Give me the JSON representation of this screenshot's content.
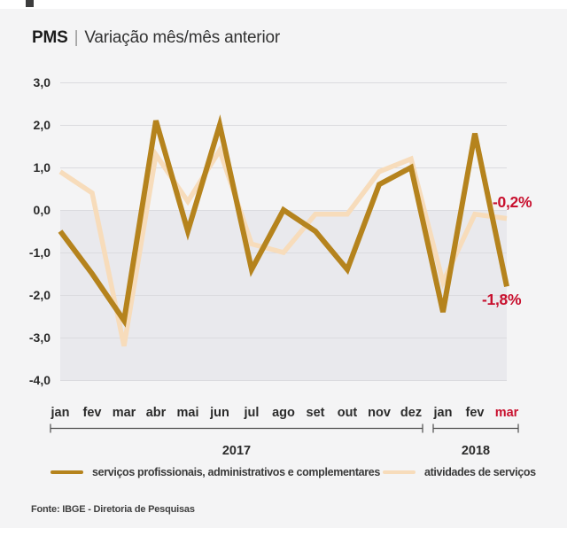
{
  "header": {
    "brand": "PMS",
    "separator": "|",
    "subtitle": "Variação mês/mês anterior"
  },
  "colors": {
    "background": "#F4F4F5",
    "negative_band": "#E9E9ED",
    "gridline": "#DBDBDF",
    "bracket": "#4d4d4d",
    "text": "#2b2b2b",
    "highlight_red": "#C8102E",
    "dark_series": "#B5831D",
    "light_series": "#F7DCBB"
  },
  "chart_data": {
    "type": "line",
    "title": "PMS | Variação mês/mês anterior",
    "xlabel": "",
    "ylabel": "",
    "grid": "horizontal",
    "legend_position": "bottom",
    "negative_band": true,
    "ylim": [
      -4.0,
      3.0
    ],
    "y_tick_values": [
      3,
      2,
      1,
      0,
      -1,
      -2,
      -3,
      -4
    ],
    "y_tick_labels": [
      "3,0",
      "2,0",
      "1,0",
      "0,0",
      "-1,0",
      "-2,0",
      "-3,0",
      "-4,0"
    ],
    "x_categories": [
      "jan",
      "fev",
      "mar",
      "abr",
      "mai",
      "jun",
      "jul",
      "ago",
      "set",
      "out",
      "nov",
      "dez",
      "jan",
      "fev",
      "mar"
    ],
    "x_highlight_index": 14,
    "year_groups": [
      {
        "label": "2017",
        "from": 0,
        "to": 11
      },
      {
        "label": "2018",
        "from": 12,
        "to": 14
      }
    ],
    "series": [
      {
        "name": "serviços profissionais, administrativos e complementares",
        "slug": "professional-services-line",
        "color": "#B5831D",
        "stroke_width": 6,
        "end_label": "-1,8%",
        "values": [
          -0.5,
          -1.5,
          -2.6,
          2.1,
          -0.5,
          2.0,
          -1.4,
          0.0,
          -0.5,
          -1.4,
          0.6,
          1.0,
          -2.4,
          1.8,
          -1.8
        ]
      },
      {
        "name": "atividades de serviços",
        "slug": "service-activities-line",
        "color": "#F7DCBB",
        "stroke_width": 5.5,
        "end_label": "-0,2%",
        "values": [
          0.9,
          0.4,
          -3.2,
          1.3,
          0.2,
          1.4,
          -0.8,
          -1.0,
          -0.1,
          -0.1,
          0.9,
          1.2,
          -1.7,
          -0.1,
          -0.2
        ]
      }
    ]
  },
  "footer": {
    "source": "Fonte: IBGE - Diretoria de Pesquisas"
  }
}
